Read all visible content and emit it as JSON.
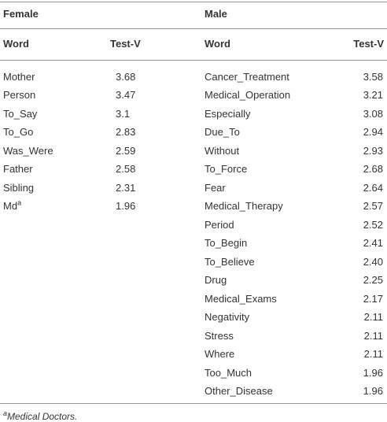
{
  "table": {
    "groups": [
      {
        "title": "Female",
        "headers": [
          "Word",
          "Test-V"
        ],
        "rows": [
          {
            "word": "Mother",
            "value": "3.68"
          },
          {
            "word": "Person",
            "value": "3.47"
          },
          {
            "word": "To_Say",
            "value": "3.1"
          },
          {
            "word": "To_Go",
            "value": "2.83"
          },
          {
            "word": "Was_Were",
            "value": "2.59"
          },
          {
            "word": "Father",
            "value": "2.58"
          },
          {
            "word": "Sibling",
            "value": "2.31"
          },
          {
            "word": "Md",
            "note": "a",
            "value": "1.96"
          }
        ]
      },
      {
        "title": "Male",
        "headers": [
          "Word",
          "Test-V"
        ],
        "rows": [
          {
            "word": "Cancer_Treatment",
            "value": "3.58"
          },
          {
            "word": "Medical_Operation",
            "value": "3.21"
          },
          {
            "word": "Especially",
            "value": "3.08"
          },
          {
            "word": "Due_To",
            "value": "2.94"
          },
          {
            "word": "Without",
            "value": "2.93"
          },
          {
            "word": "To_Force",
            "value": "2.68"
          },
          {
            "word": "Fear",
            "value": "2.64"
          },
          {
            "word": "Medical_Therapy",
            "value": "2.57"
          },
          {
            "word": "Period",
            "value": "2.52"
          },
          {
            "word": "To_Begin",
            "value": "2.41"
          },
          {
            "word": "To_Believe",
            "value": "2.40"
          },
          {
            "word": "Drug",
            "value": "2.25"
          },
          {
            "word": "Medical_Exams",
            "value": "2.17"
          },
          {
            "word": "Negativity",
            "value": "2.11"
          },
          {
            "word": "Stress",
            "value": "2.11"
          },
          {
            "word": "Where",
            "value": "2.11"
          },
          {
            "word": "Too_Much",
            "value": "1.96"
          },
          {
            "word": "Other_Disease",
            "value": "1.96"
          }
        ]
      }
    ],
    "footnote": {
      "marker": "a",
      "text": "Medical Doctors."
    }
  }
}
